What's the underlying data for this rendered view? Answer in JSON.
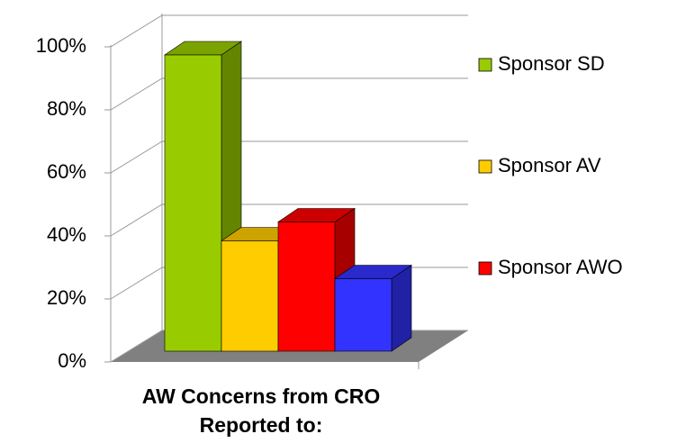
{
  "chart_data": {
    "type": "bar",
    "xlabel": "AW Concerns from CRO Reported to:",
    "categories": [
      null
    ],
    "series": [
      {
        "name": "Sponsor SD",
        "color": "#99cc00",
        "values": [
          94
        ]
      },
      {
        "name": "Sponsor AV",
        "color": "#ffcc00",
        "values": [
          35
        ]
      },
      {
        "name": "Sponsor AWO",
        "color": "#ff0000",
        "values": [
          41
        ]
      },
      {
        "name": null,
        "color": "#3333ff",
        "values": [
          23
        ]
      }
    ],
    "ylim": [
      0,
      100
    ],
    "yticks": [
      {
        "value": 0,
        "label": "0%"
      },
      {
        "value": 20,
        "label": "20%"
      },
      {
        "value": 40,
        "label": "40%"
      },
      {
        "value": 60,
        "label": "60%"
      },
      {
        "value": 80,
        "label": "80%"
      },
      {
        "value": 100,
        "label": "100%"
      }
    ],
    "grid": true,
    "legend": "right"
  }
}
